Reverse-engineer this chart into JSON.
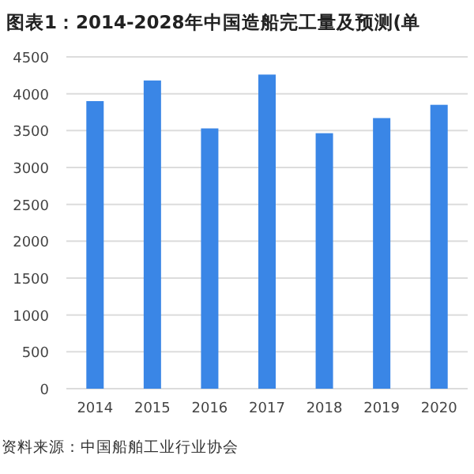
{
  "chart_data": {
    "type": "bar",
    "title": "图表1：2014-2028年中国造船完工量及预测(单",
    "categories": [
      "2014",
      "2015",
      "2016",
      "2017",
      "2018",
      "2019",
      "2020"
    ],
    "values": [
      3900,
      4180,
      3530,
      4260,
      3465,
      3670,
      3850
    ],
    "color": "#3a86e6",
    "ylim": [
      0,
      4500
    ],
    "yticks": [
      0,
      500,
      1000,
      1500,
      2000,
      2500,
      3000,
      3500,
      4000,
      4500
    ],
    "grid": "y",
    "annotations": [
      "资料来源：中国船舶工业行业协会"
    ]
  }
}
